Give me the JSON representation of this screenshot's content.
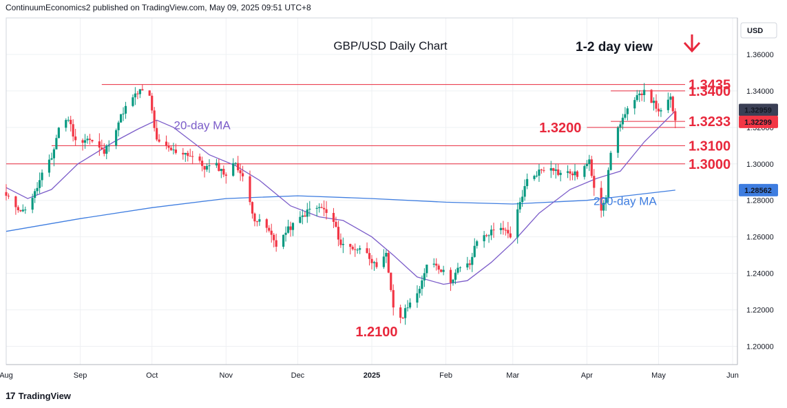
{
  "header": {
    "published": "ContinuumEconomics2 published on TradingView.com, May 09, 2025 09:51 UTC+8"
  },
  "footer": {
    "brand": "TradingView"
  },
  "colors": {
    "up": "#089981",
    "down": "#f23645",
    "ma20": "#7b5cc9",
    "ma200": "#3e7de0",
    "level": "#e8283c",
    "grid": "#eef0f3"
  },
  "chart_data": {
    "type": "candlestick",
    "title": "GBP/USD Daily Chart",
    "subtitle": "1-2 day view",
    "currency": "USD",
    "y_range": [
      1.19,
      1.38
    ],
    "y_ticks": [
      "1.36000",
      "1.34000",
      "1.32000",
      "1.30000",
      "1.28000",
      "1.26000",
      "1.24000",
      "1.22000",
      "1.20000"
    ],
    "x_range": [
      "2024-08-01",
      "2025-06-03"
    ],
    "x_ticks": [
      {
        "label": "Aug",
        "date": "2024-08-01"
      },
      {
        "label": "Sep",
        "date": "2024-09-01"
      },
      {
        "label": "Oct",
        "date": "2024-10-01"
      },
      {
        "label": "Nov",
        "date": "2024-11-01"
      },
      {
        "label": "Dec",
        "date": "2024-12-01"
      },
      {
        "label": "2025",
        "date": "2025-01-01"
      },
      {
        "label": "Feb",
        "date": "2025-02-01"
      },
      {
        "label": "Mar",
        "date": "2025-03-01"
      },
      {
        "label": "Apr",
        "date": "2025-04-01"
      },
      {
        "label": "May",
        "date": "2025-05-01"
      },
      {
        "label": "Jun",
        "date": "2025-06-01"
      }
    ],
    "price_badges": [
      {
        "label": "1.32959",
        "value": 1.32959,
        "color": "#3a3f55"
      },
      {
        "label": "1.32299",
        "value": 1.32299,
        "color": "#f23645"
      },
      {
        "label": "1.28562",
        "value": 1.28562,
        "color": "#3e7de0"
      }
    ],
    "levels": [
      {
        "label": "1.3435",
        "value": 1.3435,
        "from": "2024-09-10"
      },
      {
        "label": "1.3400",
        "value": 1.34,
        "from": "2025-04-11"
      },
      {
        "label": "1.3233",
        "value": 1.3233,
        "from": "2025-04-11"
      },
      {
        "label": "1.3200",
        "value": 1.32,
        "from": "2025-04-01",
        "label_left": true
      },
      {
        "label": "1.3100",
        "value": 1.31,
        "from": "2024-08-20"
      },
      {
        "label": "1.3000",
        "value": 1.3,
        "from": "2024-08-01"
      }
    ],
    "annotations": [
      {
        "label": "20-day MA",
        "value": 1.319,
        "date": "2024-10-22",
        "color": "#7b5cc9"
      },
      {
        "label": "200-day MA",
        "value": 1.2775,
        "date": "2025-04-17",
        "color": "#3e7de0"
      },
      {
        "label": "1.2100",
        "value": 1.2055,
        "date": "2025-01-03",
        "color": "#e8283c"
      }
    ],
    "close_path": [
      [
        "2024-08-01",
        1.282
      ],
      [
        "2024-08-05",
        1.277
      ],
      [
        "2024-08-08",
        1.274
      ],
      [
        "2024-08-13",
        1.284
      ],
      [
        "2024-08-16",
        1.294
      ],
      [
        "2024-08-20",
        1.303
      ],
      [
        "2024-08-23",
        1.32
      ],
      [
        "2024-08-27",
        1.325
      ],
      [
        "2024-08-30",
        1.312
      ],
      [
        "2024-09-04",
        1.314
      ],
      [
        "2024-09-06",
        1.312
      ],
      [
        "2024-09-11",
        1.306
      ],
      [
        "2024-09-16",
        1.32
      ],
      [
        "2024-09-19",
        1.329
      ],
      [
        "2024-09-23",
        1.336
      ],
      [
        "2024-09-26",
        1.34
      ],
      [
        "2024-09-30",
        1.337
      ],
      [
        "2024-10-03",
        1.312
      ],
      [
        "2024-10-07",
        1.309
      ],
      [
        "2024-10-10",
        1.307
      ],
      [
        "2024-10-15",
        1.306
      ],
      [
        "2024-10-18",
        1.304
      ],
      [
        "2024-10-23",
        1.298
      ],
      [
        "2024-10-28",
        1.299
      ],
      [
        "2024-11-01",
        1.294
      ],
      [
        "2024-11-05",
        1.301
      ],
      [
        "2024-11-08",
        1.292
      ],
      [
        "2024-11-13",
        1.27
      ],
      [
        "2024-11-18",
        1.265
      ],
      [
        "2024-11-22",
        1.256
      ],
      [
        "2024-11-27",
        1.264
      ],
      [
        "2024-12-02",
        1.27
      ],
      [
        "2024-12-06",
        1.275
      ],
      [
        "2024-12-11",
        1.276
      ],
      [
        "2024-12-16",
        1.268
      ],
      [
        "2024-12-19",
        1.256
      ],
      [
        "2024-12-24",
        1.254
      ],
      [
        "2024-12-30",
        1.252
      ],
      [
        "2025-01-03",
        1.242
      ],
      [
        "2025-01-07",
        1.25
      ],
      [
        "2025-01-10",
        1.222
      ],
      [
        "2025-01-13",
        1.214
      ],
      [
        "2025-01-16",
        1.223
      ],
      [
        "2025-01-21",
        1.23
      ],
      [
        "2025-01-24",
        1.246
      ],
      [
        "2025-01-28",
        1.245
      ],
      [
        "2025-02-03",
        1.236
      ],
      [
        "2025-02-06",
        1.242
      ],
      [
        "2025-02-11",
        1.245
      ],
      [
        "2025-02-14",
        1.258
      ],
      [
        "2025-02-19",
        1.262
      ],
      [
        "2025-02-24",
        1.266
      ],
      [
        "2025-02-28",
        1.259
      ],
      [
        "2025-03-04",
        1.279
      ],
      [
        "2025-03-07",
        1.291
      ],
      [
        "2025-03-12",
        1.296
      ],
      [
        "2025-03-17",
        1.299
      ],
      [
        "2025-03-20",
        1.295
      ],
      [
        "2025-03-25",
        1.295
      ],
      [
        "2025-03-28",
        1.294
      ],
      [
        "2025-04-02",
        1.301
      ],
      [
        "2025-04-04",
        1.288
      ],
      [
        "2025-04-07",
        1.276
      ],
      [
        "2025-04-09",
        1.283
      ],
      [
        "2025-04-11",
        1.307
      ],
      [
        "2025-04-15",
        1.323
      ],
      [
        "2025-04-18",
        1.329
      ],
      [
        "2025-04-22",
        1.336
      ],
      [
        "2025-04-25",
        1.341
      ],
      [
        "2025-04-29",
        1.333
      ],
      [
        "2025-05-02",
        1.328
      ],
      [
        "2025-05-06",
        1.336
      ],
      [
        "2025-05-08",
        1.323
      ]
    ],
    "ma20": [
      [
        "2024-08-01",
        1.287
      ],
      [
        "2024-08-10",
        1.281
      ],
      [
        "2024-08-20",
        1.286
      ],
      [
        "2024-08-31",
        1.3
      ],
      [
        "2024-09-15",
        1.312
      ],
      [
        "2024-09-25",
        1.319
      ],
      [
        "2024-10-03",
        1.324
      ],
      [
        "2024-10-10",
        1.32
      ],
      [
        "2024-10-25",
        1.305
      ],
      [
        "2024-11-05",
        1.299
      ],
      [
        "2024-11-15",
        1.291
      ],
      [
        "2024-11-28",
        1.277
      ],
      [
        "2024-12-10",
        1.271
      ],
      [
        "2024-12-20",
        1.269
      ],
      [
        "2025-01-01",
        1.26
      ],
      [
        "2025-01-10",
        1.25
      ],
      [
        "2025-01-20",
        1.238
      ],
      [
        "2025-01-31",
        1.234
      ],
      [
        "2025-02-10",
        1.236
      ],
      [
        "2025-02-20",
        1.246
      ],
      [
        "2025-03-01",
        1.257
      ],
      [
        "2025-03-12",
        1.273
      ],
      [
        "2025-03-25",
        1.286
      ],
      [
        "2025-04-05",
        1.292
      ],
      [
        "2025-04-15",
        1.296
      ],
      [
        "2025-04-25",
        1.312
      ],
      [
        "2025-05-08",
        1.329
      ]
    ],
    "ma200": [
      [
        "2024-08-01",
        1.263
      ],
      [
        "2024-09-01",
        1.27
      ],
      [
        "2024-10-01",
        1.276
      ],
      [
        "2024-11-01",
        1.281
      ],
      [
        "2024-12-01",
        1.2825
      ],
      [
        "2025-01-01",
        1.281
      ],
      [
        "2025-02-01",
        1.279
      ],
      [
        "2025-03-01",
        1.278
      ],
      [
        "2025-04-01",
        1.28
      ],
      [
        "2025-05-08",
        1.2856
      ]
    ]
  }
}
